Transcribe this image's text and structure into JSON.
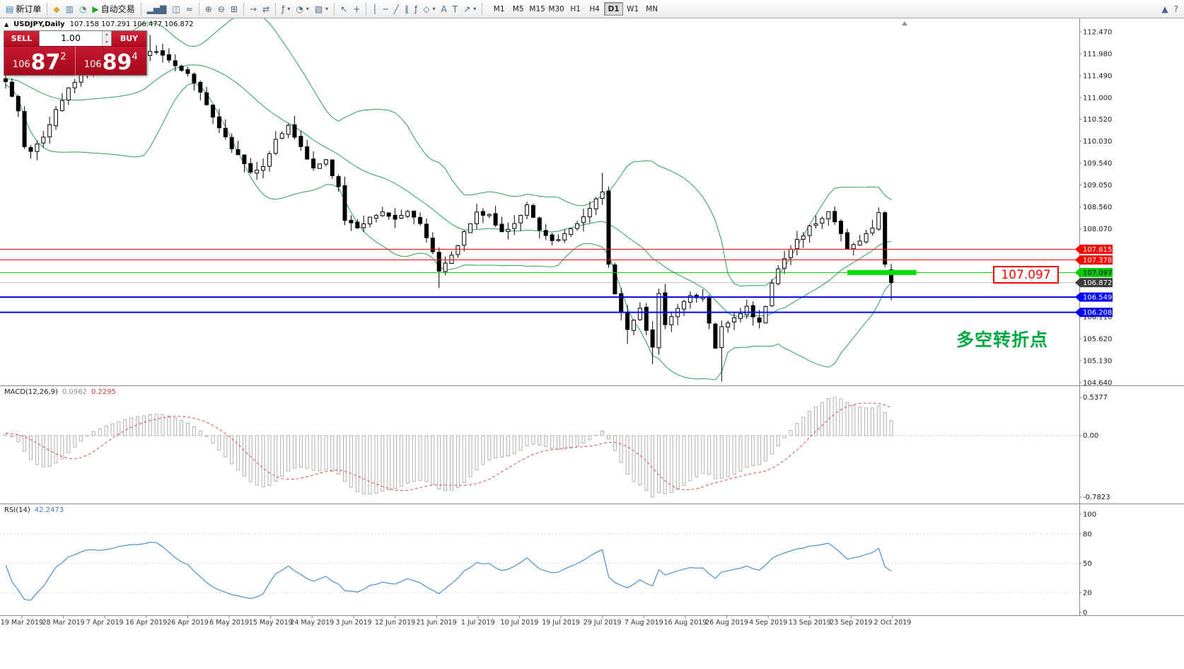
{
  "toolbar": {
    "items": [
      {
        "name": "new-order-button",
        "label": "新订单",
        "glyph": "▤",
        "glyph_color": "#3f7fbf"
      },
      {
        "sep": true
      },
      {
        "name": "metaeditor-icon-button",
        "glyph": "◆",
        "glyph_color": "#d9a72e"
      },
      {
        "name": "data-window-button",
        "glyph": "▥",
        "glyph_color": "#4a7ab5"
      },
      {
        "name": "strategy-tester-button",
        "glyph": "◔",
        "glyph_color": "#3f8f6f"
      },
      {
        "name": "auto-trading-button",
        "label": "自动交易",
        "glyph": "▶",
        "glyph_color": "#23a223"
      },
      {
        "sep": true
      },
      {
        "name": "bar-chart-button",
        "glyph": "▂▅▇"
      },
      {
        "name": "candlestick-chart-button",
        "glyph": "◫"
      },
      {
        "name": "line-chart-button",
        "glyph": "≈"
      },
      {
        "sep": true
      },
      {
        "name": "zoom-in-button",
        "glyph": "⊕"
      },
      {
        "name": "zoom-out-button",
        "glyph": "⊖"
      },
      {
        "name": "tile-windows-button",
        "glyph": "⊞"
      },
      {
        "sep": true
      },
      {
        "name": "auto-scroll-button",
        "glyph": "→"
      },
      {
        "name": "chart-shift-button",
        "glyph": "⇄"
      },
      {
        "sep": true
      },
      {
        "name": "indicators-button",
        "glyph": "ƒ",
        "dropdown": true
      },
      {
        "name": "periods-button",
        "glyph": "◔",
        "dropdown": true
      },
      {
        "name": "templates-button",
        "glyph": "▧",
        "dropdown": true
      },
      {
        "sep": true
      },
      {
        "name": "cursor-button",
        "glyph": "↖"
      },
      {
        "name": "crosshair-button",
        "glyph": "+"
      },
      {
        "sep": true
      },
      {
        "name": "vertical-line-button",
        "glyph": "│"
      },
      {
        "name": "horizontal-line-button",
        "glyph": "─"
      },
      {
        "name": "trendline-button",
        "glyph": "╱"
      },
      {
        "name": "channel-button",
        "glyph": "∥"
      },
      {
        "name": "fibonacci-button",
        "glyph": "ƒ"
      },
      {
        "name": "shapes-button",
        "glyph": "◇",
        "dropdown": true
      },
      {
        "name": "text-button",
        "glyph": "A"
      },
      {
        "name": "text-label-button",
        "glyph": "T"
      },
      {
        "name": "arrows-button",
        "glyph": "↗",
        "dropdown": true
      },
      {
        "sep": true
      }
    ],
    "timeframes": [
      "M1",
      "M5",
      "M15",
      "M30",
      "H1",
      "H4",
      "D1",
      "W1",
      "MN"
    ],
    "active_timeframe": "D1",
    "right_items": [
      {
        "name": "dock-up-button",
        "glyph": "▲"
      },
      {
        "name": "help-button",
        "glyph": "?"
      }
    ]
  },
  "symbol_panel": {
    "toggle_icon": "▲",
    "symbol": "USDJPY,Daily",
    "ohlc": "107.158 107.291 106.477 106.872"
  },
  "trade_panel": {
    "sell_label": "SELL",
    "buy_label": "BUY",
    "volume": "1.00",
    "spin_up": "▴",
    "spin_down": "▾",
    "panel_color": "#c00f25",
    "sell_price": {
      "prefix": "106",
      "big": "87",
      "sup": "2"
    },
    "buy_price": {
      "prefix": "106",
      "big": "89",
      "sup": "4"
    }
  },
  "price_axis": {
    "labels": [
      "112.470",
      "111.980",
      "111.490",
      "111.000",
      "110.520",
      "110.030",
      "109.540",
      "109.050",
      "108.560",
      "108.070",
      "106.110",
      "105.620",
      "105.130",
      "104.640"
    ],
    "badges": [
      {
        "value": "107.615",
        "color": "#ff0000",
        "text_color": "#ffffff"
      },
      {
        "value": "107.378",
        "color": "#ff0000",
        "text_color": "#ffffff"
      },
      {
        "value": "107.097",
        "color": "#00cc00",
        "text_color": "#000000"
      },
      {
        "value": "106.872",
        "color": "#3c3c3c",
        "text_color": "#ffffff"
      },
      {
        "value": "106.549",
        "color": "#0000ff",
        "text_color": "#ffffff"
      },
      {
        "value": "106.208",
        "color": "#0000ff",
        "text_color": "#ffffff"
      }
    ]
  },
  "annotations": {
    "level_label": "107.097",
    "turning_point": "多空转折点"
  },
  "macd_panel": {
    "title": "MACD(12,26,9)",
    "values": [
      "0.0962",
      "0.2295"
    ],
    "axis": [
      "0.5377",
      "0.00",
      "-0.7823"
    ]
  },
  "rsi_panel": {
    "title": "RSI(14)",
    "value": "42.2473",
    "axis": [
      "100",
      "80",
      "50",
      "20",
      "0"
    ]
  },
  "time_axis": [
    "19 Mar 2019",
    "28 Mar 2019",
    "7 Apr 2019",
    "16 Apr 2019",
    "26 Apr 2019",
    "6 May 2019",
    "15 May 2019",
    "24 May 2019",
    "3 Jun 2019",
    "12 Jun 2019",
    "21 Jun 2019",
    "1 Jul 2019",
    "10 Jul 2019",
    "19 Jul 2019",
    "29 Jul 2019",
    "7 Aug 2019",
    "16 Aug 2019",
    "26 Aug 2019",
    "4 Sep 2019",
    "13 Sep 2019",
    "23 Sep 2019",
    "2 Oct 2019"
  ],
  "chart_data": {
    "type": "candlestick",
    "symbol": "USDJPY",
    "timeframe": "Daily",
    "price_axis_range": [
      104.64,
      112.47
    ],
    "current_price": 106.872,
    "last_candle": {
      "open": 107.158,
      "high": 107.291,
      "low": 106.477,
      "close": 106.872
    },
    "hlines": [
      {
        "price": 107.615,
        "color": "#ff0000",
        "width": 1
      },
      {
        "price": 107.378,
        "color": "#ff0000",
        "width": 1
      },
      {
        "price": 107.097,
        "color": "#00c000",
        "width": 1
      },
      {
        "price": 106.549,
        "color": "#0000ff",
        "width": 2
      },
      {
        "price": 106.208,
        "color": "#0000ff",
        "width": 2
      }
    ],
    "highlight_zone": {
      "price": 107.097,
      "from_index": 134,
      "to_index": 145,
      "color": "#00dd00"
    },
    "bollinger": {
      "period": 20,
      "deviation": 2,
      "color": "#2aa05a"
    },
    "macd": {
      "fast": 12,
      "slow": 26,
      "signal": 9,
      "main_value": 0.0962,
      "signal_value": 0.2295,
      "axis_max": 0.5377,
      "axis_min": -0.7823
    },
    "rsi": {
      "period": 14,
      "value": 42.2473
    },
    "close_anchors": [
      [
        -30,
        111.2
      ],
      [
        -24,
        111.5
      ],
      [
        -18,
        111.3
      ],
      [
        -12,
        111.55
      ],
      [
        -6,
        111.35
      ],
      [
        -2,
        111.5
      ],
      [
        0,
        111.4
      ],
      [
        2,
        110.7
      ],
      [
        3,
        109.95
      ],
      [
        4,
        109.8
      ],
      [
        6,
        110.15
      ],
      [
        8,
        110.7
      ],
      [
        10,
        111.25
      ],
      [
        13,
        111.6
      ],
      [
        16,
        111.65
      ],
      [
        18,
        111.8
      ],
      [
        20,
        111.9
      ],
      [
        23,
        112.05
      ],
      [
        25,
        111.95
      ],
      [
        27,
        111.7
      ],
      [
        29,
        111.55
      ],
      [
        31,
        111.15
      ],
      [
        33,
        110.6
      ],
      [
        35,
        110.1
      ],
      [
        37,
        109.7
      ],
      [
        39,
        109.35
      ],
      [
        41,
        109.5
      ],
      [
        43,
        110.05
      ],
      [
        45,
        110.35
      ],
      [
        47,
        109.9
      ],
      [
        49,
        109.4
      ],
      [
        51,
        109.6
      ],
      [
        53,
        109.0
      ],
      [
        54,
        108.25
      ],
      [
        56,
        108.1
      ],
      [
        58,
        108.35
      ],
      [
        60,
        108.45
      ],
      [
        62,
        108.3
      ],
      [
        64,
        108.5
      ],
      [
        66,
        108.2
      ],
      [
        68,
        107.6
      ],
      [
        69,
        107.1
      ],
      [
        71,
        107.45
      ],
      [
        73,
        108.0
      ],
      [
        75,
        108.45
      ],
      [
        77,
        108.35
      ],
      [
        79,
        108.0
      ],
      [
        81,
        108.2
      ],
      [
        83,
        108.6
      ],
      [
        85,
        108.0
      ],
      [
        87,
        107.8
      ],
      [
        89,
        107.95
      ],
      [
        91,
        108.2
      ],
      [
        93,
        108.55
      ],
      [
        95,
        108.9
      ],
      [
        96,
        107.3
      ],
      [
        97,
        106.6
      ],
      [
        99,
        105.85
      ],
      [
        101,
        106.3
      ],
      [
        103,
        105.4
      ],
      [
        104,
        106.6
      ],
      [
        105,
        105.95
      ],
      [
        107,
        106.3
      ],
      [
        109,
        106.6
      ],
      [
        111,
        106.55
      ],
      [
        113,
        105.45
      ],
      [
        114,
        105.9
      ],
      [
        116,
        106.1
      ],
      [
        118,
        106.3
      ],
      [
        120,
        105.95
      ],
      [
        121,
        106.35
      ],
      [
        122,
        106.9
      ],
      [
        124,
        107.4
      ],
      [
        126,
        107.8
      ],
      [
        128,
        108.1
      ],
      [
        130,
        108.3
      ],
      [
        131,
        108.45
      ],
      [
        133,
        108.0
      ],
      [
        134,
        107.6
      ],
      [
        136,
        107.8
      ],
      [
        138,
        108.1
      ],
      [
        139,
        108.4
      ],
      [
        140,
        107.3
      ],
      [
        141,
        106.9
      ]
    ],
    "low_overrides": {
      "69": 106.75,
      "99": 105.5,
      "103": 105.05,
      "114": 104.66
    },
    "high_overrides": {
      "23": 112.4,
      "95": 109.32,
      "139": 108.55
    }
  }
}
